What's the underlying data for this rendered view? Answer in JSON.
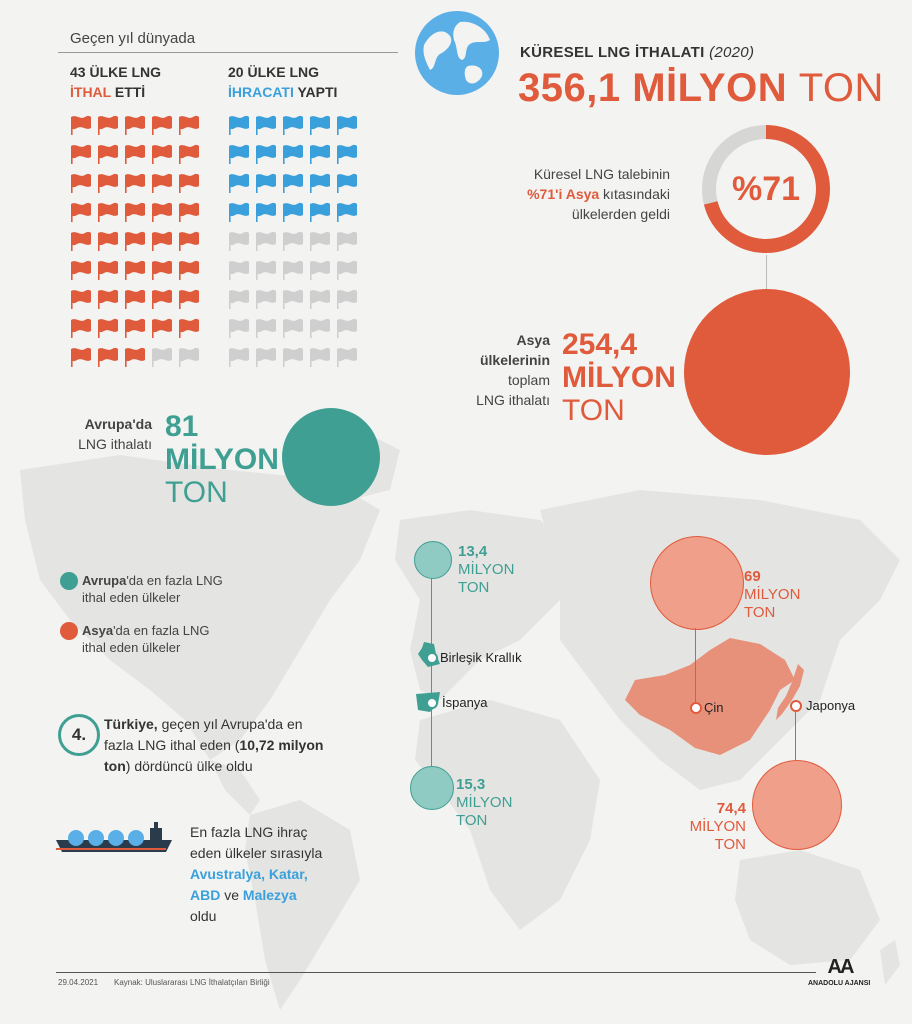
{
  "header": {
    "subtitle": "Geçen yıl dünyada",
    "importers": {
      "count_text": "43 ÜLKE LNG",
      "highlight": "İTHAL",
      "rest": " ETTİ",
      "count": 43,
      "total": 45
    },
    "exporters": {
      "count_text": "20 ÜLKE LNG",
      "highlight": "İHRACATI",
      "rest": " YAPTI",
      "count": 20,
      "total": 45
    },
    "global_label": "KÜRESEL LNG İTHALATI",
    "global_year": "(2020)",
    "global_value": "356,1 MİLYON",
    "global_unit": "TON"
  },
  "asia_share": {
    "line1": "Küresel LNG talebinin",
    "highlight": "%71'i Asya",
    "line2_rest": " kıtasındaki",
    "line3": "ülkelerden geldi",
    "percent_label": "%71",
    "percent": 71
  },
  "asia_total": {
    "line1": "Asya",
    "line2": "ülkelerinin",
    "line3": "toplam",
    "line4": "LNG ithalatı",
    "num": "254,4",
    "unit1": "MİLYON",
    "unit2": "TON"
  },
  "europe_total": {
    "line1": "Avrupa'da",
    "line2": "LNG ithalatı",
    "num": "81",
    "unit1": "MİLYON",
    "unit2": "TON"
  },
  "legend": {
    "europe_bold": "Avrupa",
    "europe_rest": "'da en fazla LNG",
    "europe_line2": "ithal eden ülkeler",
    "asia_bold": "Asya",
    "asia_rest": "'da en fazla LNG",
    "asia_line2": "ithal eden ülkeler"
  },
  "map": {
    "uk": {
      "name": "Birleşik Krallık",
      "num": "13,4",
      "unit1": "MİLYON",
      "unit2": "TON"
    },
    "spain": {
      "name": "İspanya",
      "num": "15,3",
      "unit1": "MİLYON",
      "unit2": "TON"
    },
    "china": {
      "name": "Çin",
      "num": "69",
      "unit1": "MİLYON",
      "unit2": "TON"
    },
    "japan": {
      "name": "Japonya",
      "num": "74,4",
      "unit1": "MİLYON",
      "unit2": "TON"
    }
  },
  "turkey": {
    "badge": "4.",
    "bold1": "Türkiye,",
    "text1": " geçen yıl Avrupa'da en",
    "text2a": "fazla LNG ithal eden (",
    "bold2": "10,72 milyon",
    "bold3": "ton",
    "text3": ") dördüncü ülke oldu"
  },
  "exporters_note": {
    "line1": "En fazla LNG ihraç",
    "line2": "eden ülkeler sırasıyla",
    "c1": "Avustralya,",
    "c2": "Katar,",
    "c3": "ABD",
    "and": " ve ",
    "c4": "Malezya",
    "line_end": "oldu"
  },
  "footer": {
    "date": "29.04.2021",
    "source": "Kaynak: Uluslararası LNG İthalatçıları Birliği",
    "brand": "ANADOLU AJANSI",
    "logo": "AA"
  },
  "colors": {
    "orange": "#e05a3c",
    "blue": "#3aa0dc",
    "teal": "#3f9f93",
    "gray": "#cfcfcf"
  }
}
